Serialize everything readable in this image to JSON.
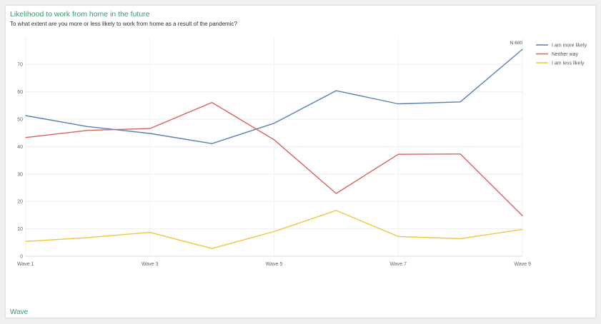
{
  "header": {
    "title": "Likelihood to work from home in the future",
    "subtitle": "To what extent are you more or less likely to work from home as a result of the pandemic?"
  },
  "footer": {
    "axis_label": "Wave"
  },
  "chart_data": {
    "type": "line",
    "x": [
      "Wave 1",
      "Wave 2",
      "Wave 3",
      "Wave 4",
      "Wave 5",
      "Wave 6",
      "Wave 7",
      "Wave 8",
      "Wave 9"
    ],
    "x_tick_labels": [
      "Wave 1",
      "Wave 3",
      "Wave 5",
      "Wave 7",
      "Wave 9"
    ],
    "ylim": [
      0,
      80
    ],
    "y_ticks": [
      0,
      10,
      20,
      30,
      40,
      50,
      60,
      70
    ],
    "grid": true,
    "legend_position": "top-right",
    "annotation": "N 600",
    "series": [
      {
        "name": "I am more likely",
        "color": "#5b7fb5",
        "values": [
          51.3,
          47.3,
          44.8,
          41.1,
          48.5,
          60.4,
          55.6,
          56.3,
          75.5
        ]
      },
      {
        "name": "Neither way",
        "color": "#d9625f",
        "values": [
          43.3,
          45.9,
          46.6,
          56.1,
          42.5,
          22.9,
          37.2,
          37.3,
          14.8
        ]
      },
      {
        "name": "I am less likely",
        "color": "#f2c53d",
        "values": [
          5.4,
          6.8,
          8.7,
          2.8,
          9.0,
          16.7,
          7.2,
          6.4,
          9.8
        ]
      }
    ]
  }
}
